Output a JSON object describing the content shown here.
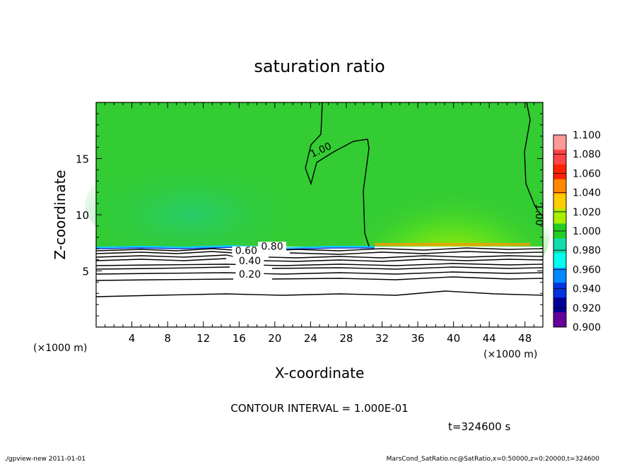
{
  "chart_data": {
    "type": "heatmap",
    "title": "saturation ratio",
    "xlabel": "X-coordinate",
    "ylabel": "Z-coordinate",
    "x_unit_left": "(×1000 m)",
    "x_unit_right": "(×1000 m)",
    "xlim": [
      0,
      50
    ],
    "ylim": [
      0,
      20
    ],
    "x_ticks": [
      4,
      8,
      12,
      16,
      20,
      24,
      28,
      32,
      36,
      40,
      44,
      48
    ],
    "y_ticks": [
      5,
      10,
      15
    ],
    "colorbar": {
      "levels": [
        "1.100",
        "1.080",
        "1.060",
        "1.040",
        "1.020",
        "1.000",
        "0.980",
        "0.960",
        "0.940",
        "0.920",
        "0.900"
      ],
      "colors": [
        "#ff9999",
        "#ff4444",
        "#ff2200",
        "#ff8800",
        "#ffcc00",
        "#aaee00",
        "#22cc22",
        "#11ddaa",
        "#00ffee",
        "#0088ff",
        "#0033dd",
        "#000099",
        "#660099"
      ]
    },
    "contour_labels": [
      {
        "text": "1.00",
        "x": 25.3,
        "z": 15.5
      },
      {
        "text": "1.00",
        "x": 49.2,
        "z": 10.0
      },
      {
        "text": "0.80",
        "x": 19.7,
        "z": 6.9
      },
      {
        "text": "0.60",
        "x": 16.8,
        "z": 6.5
      },
      {
        "text": "0.40",
        "x": 17.2,
        "z": 5.6
      },
      {
        "text": "0.20",
        "x": 17.2,
        "z": 4.4
      }
    ],
    "contour_interval_text": "CONTOUR INTERVAL = 1.000E-01",
    "time_text": "t=324600 s"
  },
  "footer": {
    "left": "./gpview-new  2011-01-01",
    "right": "MarsCond_SatRatio.nc@SatRatio,x=0:50000,z=0:20000,t=324600"
  }
}
